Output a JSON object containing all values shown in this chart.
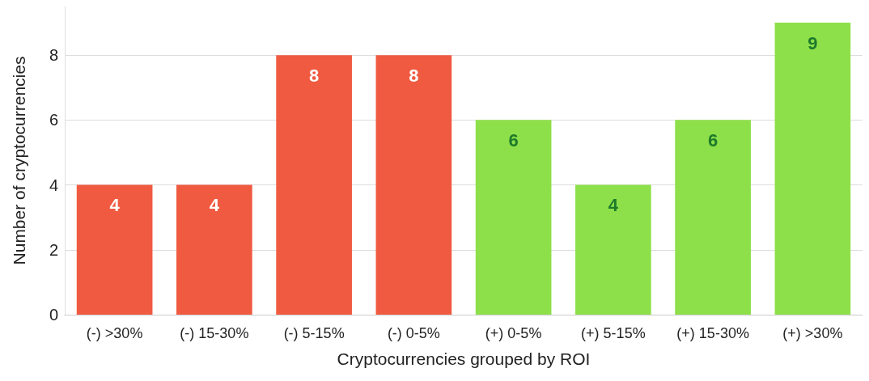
{
  "chart_data": {
    "type": "bar",
    "xlabel": "Cryptocurrencies grouped by ROI",
    "ylabel": "Number of cryptocurrencies",
    "categories": [
      "(-) >30%",
      "(-) 15-30%",
      "(-) 5-15%",
      "(-) 0-5%",
      "(+) 0-5%",
      "(+) 5-15%",
      "(+) 15-30%",
      "(+) >30%"
    ],
    "values": [
      4,
      4,
      8,
      8,
      6,
      4,
      6,
      9
    ],
    "colors": [
      "#f05a40",
      "#f05a40",
      "#f05a40",
      "#f05a40",
      "#8ee04a",
      "#8ee04a",
      "#8ee04a",
      "#8ee04a"
    ],
    "ylim": [
      0,
      9.5
    ],
    "yticks": [
      0,
      2,
      4,
      6,
      8
    ],
    "grid": "y",
    "data_labels": true
  }
}
